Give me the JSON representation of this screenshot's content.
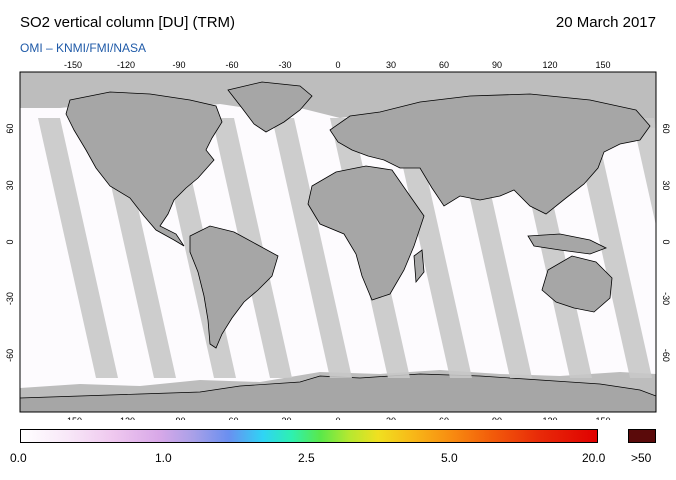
{
  "header": {
    "title": "SO2 vertical column [DU] (TRM)",
    "date": "20 March 2017",
    "subtitle": "OMI  –  KNMI/FMI/NASA"
  },
  "map": {
    "lon_ticks": [
      "-150",
      "-120",
      "-90",
      "-60",
      "-30",
      "0",
      "30",
      "60",
      "90",
      "120",
      "150"
    ],
    "lat_ticks": [
      "60",
      "30",
      "0",
      "-30",
      "-60"
    ],
    "colors": {
      "land_gray": "#a6a6a6",
      "swath_gray": "#c8c8c8",
      "polar_gray": "#bdbdbd",
      "coast": "#000000"
    }
  },
  "colorbar": {
    "labels": [
      "0.0",
      "1.0",
      "2.5",
      "5.0",
      "20.0"
    ],
    "over_label": ">50",
    "over_color": "#5a0a0a"
  }
}
